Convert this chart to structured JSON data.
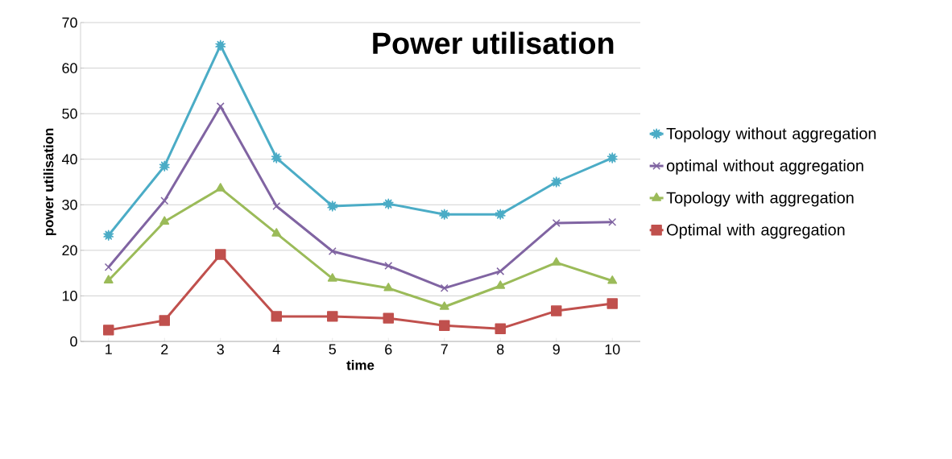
{
  "chart_data": {
    "type": "line",
    "title": "Power utilisation",
    "xlabel": "time",
    "ylabel": "power utilisation",
    "categories": [
      "1",
      "2",
      "3",
      "4",
      "5",
      "6",
      "7",
      "8",
      "9",
      "10"
    ],
    "series": [
      {
        "name": "Topology without aggregation",
        "color": "#4bacc6",
        "marker": "star",
        "values": [
          23.3,
          38.5,
          65,
          40.3,
          29.7,
          30.2,
          27.9,
          27.9,
          35,
          40.3
        ]
      },
      {
        "name": "optimal without aggregation",
        "color": "#8064a2",
        "marker": "cross",
        "values": [
          16.3,
          30.9,
          51.6,
          29.7,
          19.8,
          16.6,
          11.7,
          15.4,
          26,
          26.2
        ]
      },
      {
        "name": "Topology with  aggregation",
        "color": "#9bbb59",
        "marker": "triangle",
        "values": [
          13.4,
          26.3,
          33.6,
          23.7,
          13.8,
          11.7,
          7.6,
          12.2,
          17.3,
          13.3
        ]
      },
      {
        "name": "Optimal with aggregation",
        "color": "#c0504d",
        "marker": "square",
        "values": [
          2.5,
          4.6,
          19.1,
          5.5,
          5.5,
          5.1,
          3.5,
          2.8,
          6.7,
          8.3
        ]
      }
    ],
    "ylim": [
      0,
      70
    ],
    "yticks": [
      0,
      10,
      20,
      30,
      40,
      50,
      60,
      70
    ],
    "grid": "y",
    "legend": "right"
  }
}
